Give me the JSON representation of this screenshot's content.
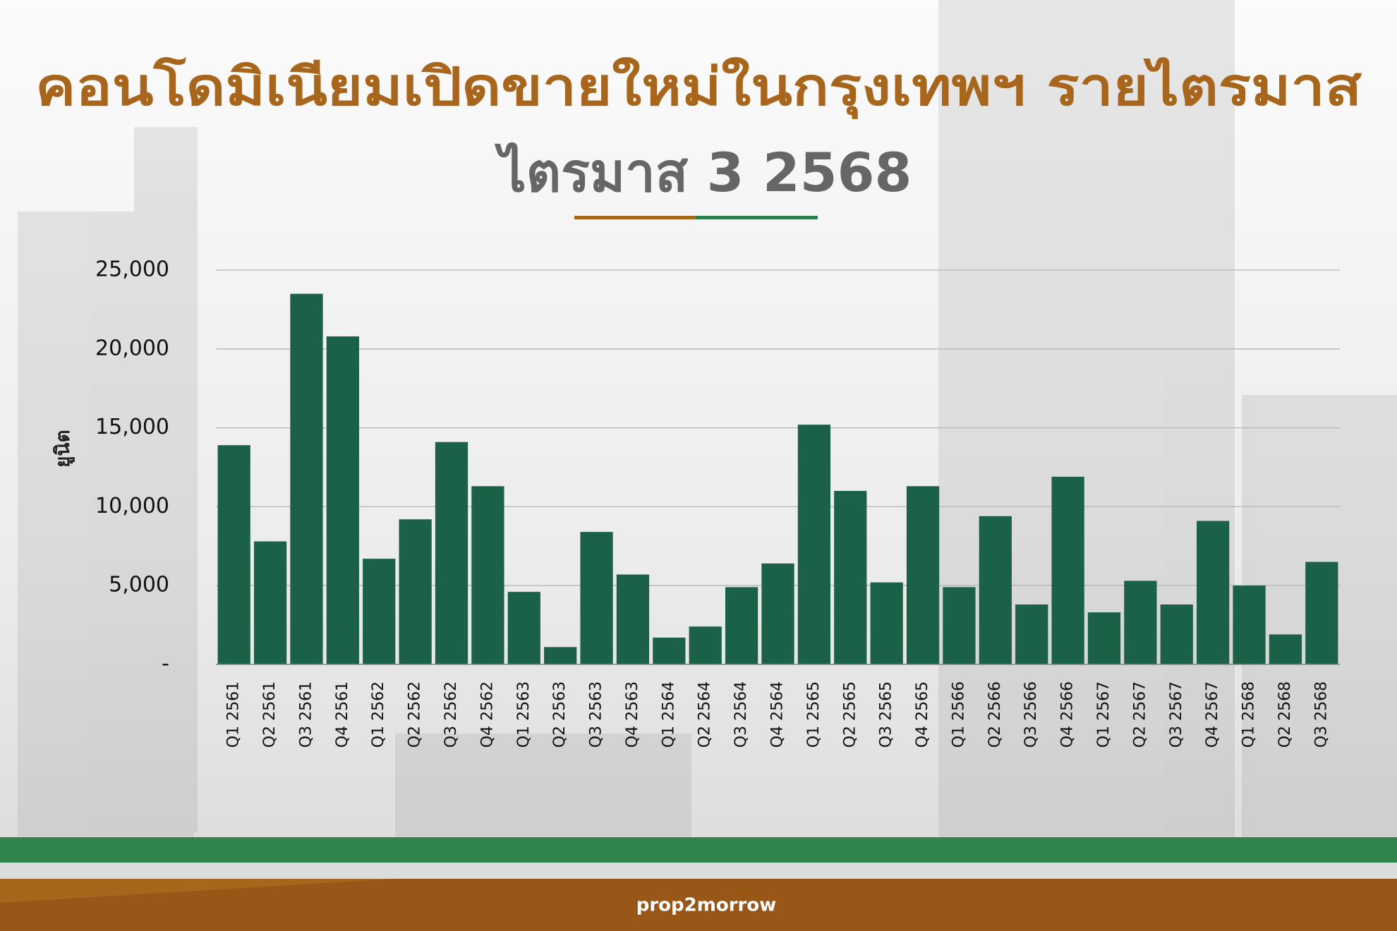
{
  "chart_data": {
    "type": "bar",
    "title": "คอนโดมิเนียมเปิดขายใหม่ในกรุงเทพฯ รายไตรมาส",
    "subtitle": "ไตรมาส 3 2568",
    "y_label": "ยูนิต",
    "categories": [
      "Q1 2561",
      "Q2 2561",
      "Q3 2561",
      "Q4 2561",
      "Q1 2562",
      "Q2 2562",
      "Q3 2562",
      "Q4 2562",
      "Q1 2563",
      "Q2 2563",
      "Q3 2563",
      "Q4 2563",
      "Q1 2564",
      "Q2 2564",
      "Q3 2564",
      "Q4 2564",
      "Q1 2565",
      "Q2 2565",
      "Q3 2565",
      "Q4 2565",
      "Q1 2566",
      "Q2 2566",
      "Q3 2566",
      "Q4 2566",
      "Q1 2567",
      "Q2 2567",
      "Q3 2567",
      "Q4 2567",
      "Q1 2568",
      "Q2 2568",
      "Q3 2568"
    ],
    "values": [
      13900,
      7800,
      23500,
      20800,
      6700,
      9200,
      14100,
      11300,
      4600,
      1100,
      8400,
      5700,
      1700,
      2400,
      4900,
      6400,
      15200,
      11000,
      5200,
      11300,
      4900,
      9400,
      3800,
      11900,
      3300,
      5300,
      3800,
      9100,
      5000,
      1900,
      6500
    ],
    "color": "#1b6148",
    "ylim": [
      0,
      25000
    ],
    "yticks": [
      {
        "value": 0,
        "label": "-"
      },
      {
        "value": 5000,
        "label": "5,000"
      },
      {
        "value": 10000,
        "label": "10,000"
      },
      {
        "value": 15000,
        "label": "15,000"
      },
      {
        "value": 20000,
        "label": "20,000"
      },
      {
        "value": 25000,
        "label": "25,000"
      }
    ],
    "grid": true
  },
  "footer": {
    "logo": "prop2morrow"
  }
}
